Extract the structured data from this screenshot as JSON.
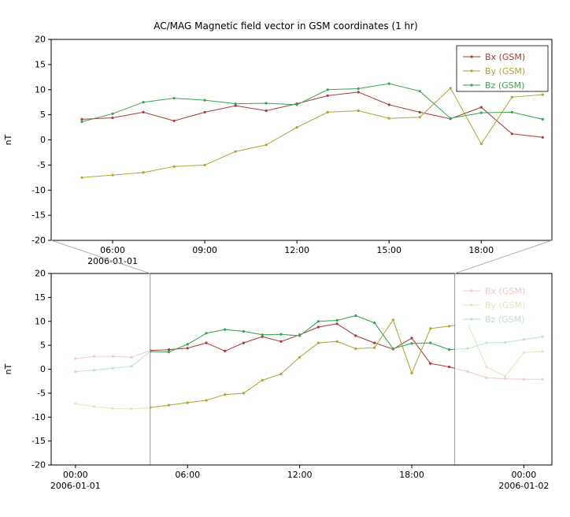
{
  "title": "AC/MAG  Magnetic field vector in GSM coordinates (1 hr)",
  "ylabel": "nT",
  "colors": {
    "bx": "#a83c3c",
    "by": "#b3a339",
    "bz": "#3aa34e",
    "bx_faded": "#eeccca",
    "by_faded": "#e9e4c0",
    "bz_faded": "#c2e4cc",
    "axis": "#000000",
    "band_line": "#999999",
    "connector": "#b3b3b3",
    "legend_border": "#333333"
  },
  "chart_data": [
    {
      "type": "line",
      "id": "zoomed",
      "title": "AC/MAG  Magnetic field vector in GSM coordinates (1 hr)",
      "ylabel": "nT",
      "ylim": [
        -20,
        20
      ],
      "yticks": [
        20,
        15,
        10,
        5,
        0,
        -5,
        -10,
        -15,
        -20
      ],
      "xlim": [
        4.0,
        20.3
      ],
      "xticks": [
        {
          "x": 6,
          "label": "06:00"
        },
        {
          "x": 9,
          "label": "09:00"
        },
        {
          "x": 12,
          "label": "12:00"
        },
        {
          "x": 15,
          "label": "15:00"
        },
        {
          "x": 18,
          "label": "18:00"
        }
      ],
      "date_labels": [
        {
          "x": 6,
          "label": "2006-01-01"
        }
      ],
      "legend_position": "upper right",
      "legend_border": true,
      "x": [
        5,
        6,
        7,
        8,
        9,
        10,
        11,
        12,
        13,
        14,
        15,
        16,
        17,
        18,
        19,
        20
      ],
      "series": [
        {
          "name": "Bx (GSM)",
          "color_key": "bx",
          "values": [
            4.1,
            4.4,
            5.5,
            3.8,
            5.5,
            6.8,
            5.8,
            7.2,
            8.8,
            9.5,
            7.0,
            5.5,
            4.2,
            6.5,
            1.2,
            0.5
          ]
        },
        {
          "name": "By (GSM)",
          "color_key": "by",
          "values": [
            -7.5,
            -7.0,
            -6.5,
            -5.3,
            -5.0,
            -2.3,
            -1.0,
            2.5,
            5.5,
            5.8,
            4.3,
            4.5,
            10.3,
            -0.8,
            8.5,
            9.0
          ]
        },
        {
          "name": "Bz (GSM)",
          "color_key": "bz",
          "values": [
            3.6,
            5.2,
            7.5,
            8.3,
            7.9,
            7.2,
            7.3,
            7.0,
            10.0,
            10.2,
            11.2,
            9.7,
            4.3,
            5.4,
            5.5,
            4.1
          ]
        }
      ]
    },
    {
      "type": "line",
      "id": "overview",
      "ylabel": "nT",
      "ylim": [
        -20,
        20
      ],
      "yticks": [
        20,
        15,
        10,
        5,
        0,
        -5,
        -10,
        -15,
        -20
      ],
      "xlim": [
        -1.3,
        25.5
      ],
      "xticks": [
        {
          "x": 0,
          "label": "00:00"
        },
        {
          "x": 6,
          "label": "06:00"
        },
        {
          "x": 12,
          "label": "12:00"
        },
        {
          "x": 18,
          "label": "18:00"
        },
        {
          "x": 24,
          "label": "00:00"
        }
      ],
      "date_labels": [
        {
          "x": 0,
          "label": "2006-01-01"
        },
        {
          "x": 24,
          "label": "2006-01-02"
        }
      ],
      "highlight_band": [
        4.0,
        20.3
      ],
      "legend_position": "upper right",
      "legend_border": false,
      "x": [
        0,
        1,
        2,
        3,
        4,
        5,
        6,
        7,
        8,
        9,
        10,
        11,
        12,
        13,
        14,
        15,
        16,
        17,
        18,
        19,
        20,
        21,
        22,
        23,
        24,
        25
      ],
      "series": [
        {
          "name": "Bx (GSM)",
          "color_key": "bx",
          "values": [
            2.2,
            2.7,
            2.7,
            2.5,
            3.9,
            4.1,
            4.4,
            5.5,
            3.8,
            5.5,
            6.8,
            5.8,
            7.2,
            8.8,
            9.5,
            7.0,
            5.5,
            4.2,
            6.5,
            1.2,
            0.5,
            -0.5,
            -1.8,
            -2.0,
            -2.1,
            -2.1
          ]
        },
        {
          "name": "By (GSM)",
          "color_key": "by",
          "values": [
            -7.2,
            -7.8,
            -8.2,
            -8.3,
            -8.0,
            -7.5,
            -7.0,
            -6.5,
            -5.3,
            -5.0,
            -2.3,
            -1.0,
            2.5,
            5.5,
            5.8,
            4.3,
            4.5,
            10.3,
            -0.8,
            8.5,
            9.0,
            9.5,
            0.5,
            -1.5,
            3.5,
            3.7
          ]
        },
        {
          "name": "Bz (GSM)",
          "color_key": "bz",
          "values": [
            -0.5,
            -0.2,
            0.2,
            0.6,
            3.7,
            3.6,
            5.2,
            7.5,
            8.3,
            7.9,
            7.2,
            7.3,
            7.0,
            10.0,
            10.2,
            11.2,
            9.7,
            4.3,
            5.4,
            5.5,
            4.1,
            4.3,
            5.5,
            5.6,
            6.2,
            6.8
          ]
        }
      ]
    }
  ]
}
